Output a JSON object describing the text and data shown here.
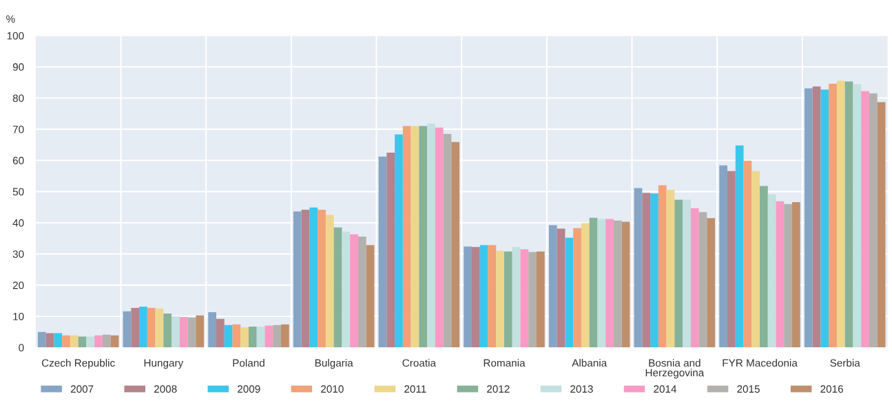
{
  "chart_data": {
    "type": "bar",
    "ylabel": "%",
    "categories": [
      "Czech Republic",
      "Hungary",
      "Poland",
      "Bulgaria",
      "Croatia",
      "Romania",
      "Albania",
      "Bosnia and\nHerzegovina",
      "FYR Macedonia",
      "Serbia"
    ],
    "series": [
      {
        "name": "2007",
        "color": "#86a5c5",
        "values": [
          5.0,
          11.6,
          11.3,
          43.6,
          61.2,
          32.4,
          39.2,
          51.1,
          58.4,
          83.1
        ]
      },
      {
        "name": "2008",
        "color": "#b5838c",
        "values": [
          4.6,
          12.7,
          9.2,
          44.2,
          62.5,
          32.2,
          38.1,
          49.6,
          56.6,
          83.7
        ]
      },
      {
        "name": "2009",
        "color": "#3ac7ed",
        "values": [
          4.6,
          13.1,
          7.2,
          44.9,
          68.3,
          32.8,
          35.2,
          49.4,
          64.8,
          82.7
        ]
      },
      {
        "name": "2010",
        "color": "#f2a276",
        "values": [
          3.9,
          12.7,
          7.4,
          44.2,
          71.0,
          32.8,
          38.3,
          52.0,
          59.9,
          84.6
        ]
      },
      {
        "name": "2011",
        "color": "#eed78c",
        "values": [
          3.9,
          12.5,
          6.5,
          42.5,
          71.0,
          31.0,
          39.9,
          50.6,
          56.6,
          85.5
        ]
      },
      {
        "name": "2012",
        "color": "#86b298",
        "values": [
          3.5,
          10.9,
          6.7,
          38.5,
          71.0,
          30.8,
          41.6,
          47.4,
          51.8,
          85.3
        ]
      },
      {
        "name": "2013",
        "color": "#c3e1e0",
        "values": [
          3.5,
          10.0,
          6.7,
          37.2,
          71.8,
          32.2,
          41.2,
          47.4,
          49.1,
          84.4
        ]
      },
      {
        "name": "2014",
        "color": "#f99ac5",
        "values": [
          3.9,
          9.8,
          7.0,
          36.3,
          70.5,
          31.5,
          41.2,
          44.7,
          46.9,
          82.2
        ]
      },
      {
        "name": "2015",
        "color": "#b3b1ad",
        "values": [
          4.1,
          9.6,
          7.2,
          35.6,
          68.5,
          30.6,
          40.7,
          43.4,
          46.0,
          81.5
        ]
      },
      {
        "name": "2016",
        "color": "#bf8f6b",
        "values": [
          3.9,
          10.3,
          7.4,
          32.8,
          65.9,
          30.8,
          40.3,
          41.5,
          46.6,
          78.7
        ]
      }
    ],
    "ylim": [
      0,
      100
    ],
    "yticks": [
      0,
      10,
      20,
      30,
      40,
      50,
      60,
      70,
      80,
      90,
      100
    ],
    "grid": true,
    "legend": "bottom"
  }
}
